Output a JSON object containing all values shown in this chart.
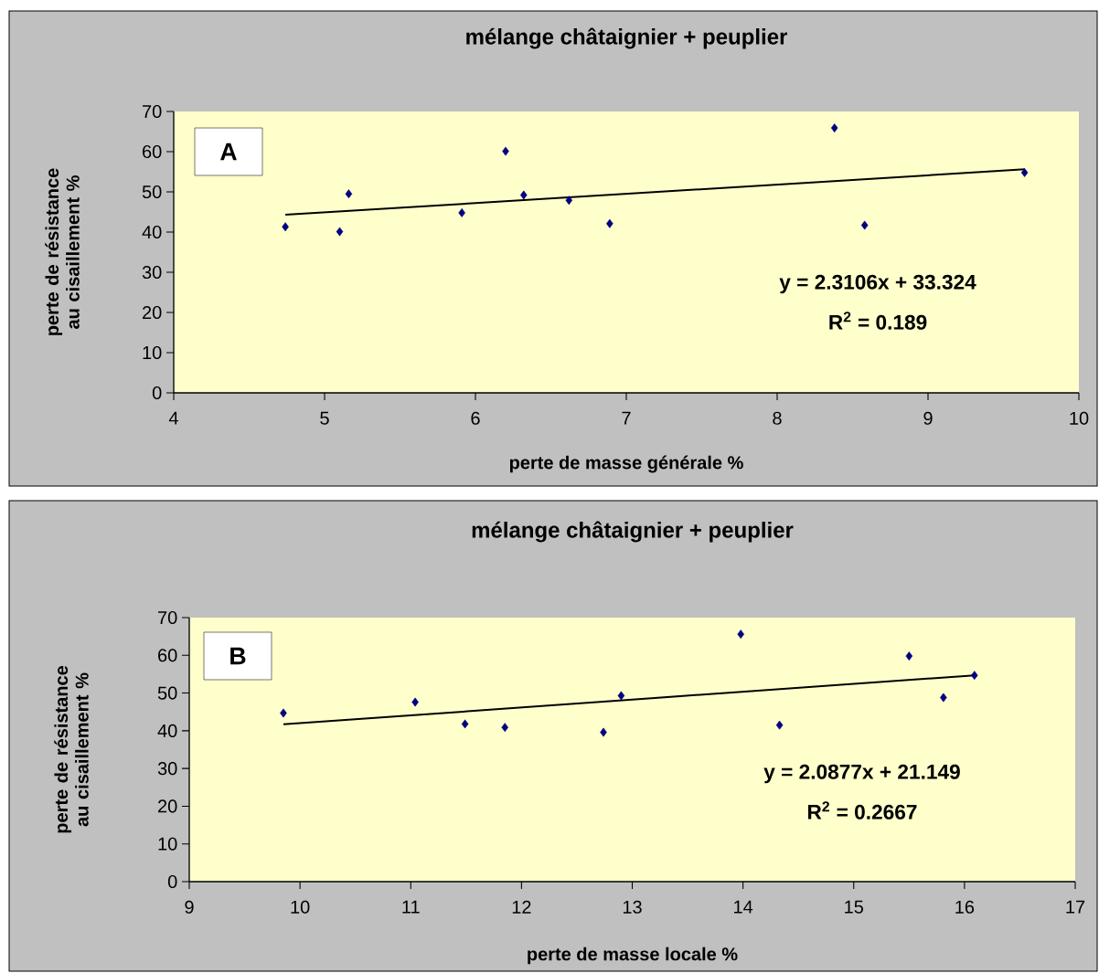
{
  "chart_data": [
    {
      "type": "scatter",
      "title": "mélange châtaignier + peuplier",
      "xlabel": "perte de masse générale %",
      "ylabel": "perte de résistance au cisaillement %",
      "xlim": [
        4,
        10
      ],
      "xticks": [
        4,
        5,
        6,
        7,
        8,
        9,
        10
      ],
      "ylim": [
        0,
        70
      ],
      "yticks": [
        0,
        10,
        20,
        30,
        40,
        50,
        60,
        70
      ],
      "marker": "diamond",
      "annotations": [
        "A",
        "y = 2.3106x + 33.324",
        "R$^{2}$ = 0.189"
      ],
      "series": [
        {
          "color": "#000080",
          "x": [
            4.74,
            5.1,
            5.16,
            5.91,
            6.2,
            6.32,
            6.62,
            6.89,
            8.38,
            8.58,
            9.64
          ],
          "values": [
            41.3,
            40.1,
            49.5,
            44.8,
            60.1,
            49.2,
            47.9,
            42.1,
            65.9,
            41.7,
            54.8
          ]
        },
        {
          "type": "line",
          "color": "#000000",
          "marker": "none",
          "x": [
            4.74,
            9.64
          ],
          "values": [
            44.3,
            55.6
          ]
        }
      ]
    },
    {
      "type": "scatter",
      "title": "mélange châtaignier + peuplier",
      "xlabel": "perte de masse locale %",
      "ylabel": "perte de résistance au cisaillement %",
      "xlim": [
        9,
        17
      ],
      "xticks": [
        9,
        10,
        11,
        12,
        13,
        14,
        15,
        16,
        17
      ],
      "ylim": [
        0,
        70
      ],
      "yticks": [
        0,
        10,
        20,
        30,
        40,
        50,
        60,
        70
      ],
      "marker": "diamond",
      "annotations": [
        "B",
        "y = 2.0877x + 21.149",
        "R$^{2}$ = 0.2667"
      ],
      "series": [
        {
          "color": "#000080",
          "x": [
            9.85,
            11.04,
            11.49,
            11.85,
            12.74,
            12.9,
            13.98,
            14.33,
            15.5,
            15.81,
            16.09
          ],
          "values": [
            44.7,
            47.6,
            41.8,
            40.9,
            39.6,
            49.3,
            65.6,
            41.5,
            59.8,
            48.8,
            54.7
          ]
        },
        {
          "type": "line",
          "color": "#000000",
          "marker": "none",
          "x": [
            9.85,
            16.09
          ],
          "values": [
            41.7,
            54.7
          ]
        }
      ]
    }
  ]
}
